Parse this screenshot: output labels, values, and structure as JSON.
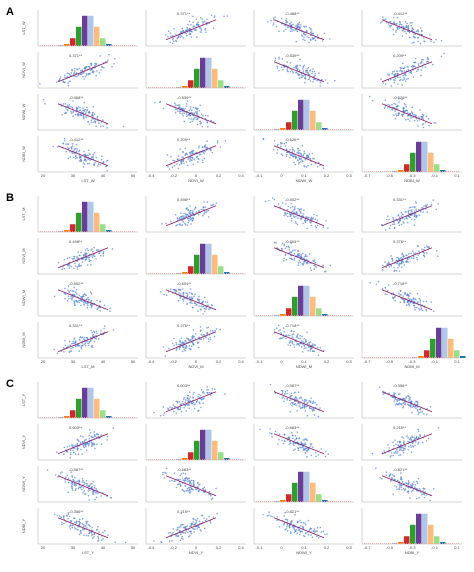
{
  "panels": [
    {
      "label": "A",
      "variables": [
        "LST_W",
        "NDVI_W",
        "NDWI_W",
        "NDBI_W"
      ],
      "correlations": [
        "0.371**",
        "-0.468**",
        "-0.412**",
        "-0.539**",
        "0.209**",
        "-0.626**"
      ],
      "xticks": [
        [
          "20",
          "30",
          "40",
          "50"
        ],
        [
          "-0.4",
          "-0.2",
          "0",
          "0.2",
          "0.4"
        ],
        [
          "-0.1",
          "0",
          "0.1",
          "0.2",
          "0.3"
        ],
        [
          "-0.7",
          "-0.5",
          "-0.3",
          "-0.1",
          "0.1"
        ]
      ]
    },
    {
      "label": "B",
      "variables": [
        "LST_M",
        "NDVI_M",
        "NDWI_M",
        "NDBI_M"
      ],
      "correlations": [
        "0.498**",
        "-0.552**",
        "0.331**",
        "-0.604**",
        "0.276**",
        "-0.718**"
      ],
      "xticks": [
        [
          "20",
          "30",
          "40",
          "50"
        ],
        [
          "-0.4",
          "-0.2",
          "0",
          "0.2",
          "0.4"
        ],
        [
          "-0.1",
          "0",
          "0.1",
          "0.2",
          "0.3"
        ],
        [
          "-0.7",
          "-0.5",
          "-0.3",
          "-0.1",
          "0.1"
        ]
      ]
    },
    {
      "label": "C",
      "variables": [
        "LST_Y",
        "NDVI_Y",
        "NDWI_Y",
        "NDBI_Y"
      ],
      "correlations": [
        "0.603**",
        "-0.587**",
        "-0.356**",
        "-0.683**",
        "0.215**",
        "-0.821**"
      ],
      "xticks": [
        [
          "20",
          "30",
          "40",
          "50"
        ],
        [
          "-0.4",
          "-0.2",
          "0",
          "0.2",
          "0.4"
        ],
        [
          "-0.1",
          "0",
          "0.1",
          "0.2",
          "0.3"
        ],
        [
          "-0.7",
          "-0.5",
          "-0.3",
          "-0.1",
          "0.1"
        ]
      ]
    }
  ]
}
